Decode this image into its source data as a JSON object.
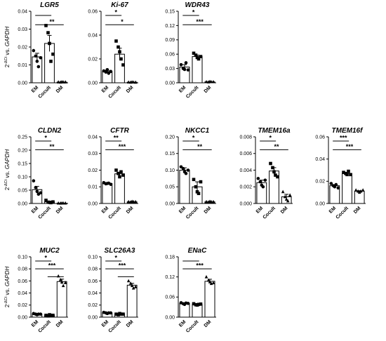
{
  "ylabel": {
    "pre": "2",
    "sup": "-ΔCt",
    "mid": " vs. ",
    "gene": "GAPDH"
  },
  "chart_data": [
    {
      "type": "bar",
      "title": "LGR5",
      "categories": [
        "EM",
        "Cocult",
        "DM"
      ],
      "values": [
        0.0145,
        0.022,
        0.0004
      ],
      "errors": [
        0.002,
        0.0045,
        0.0002
      ],
      "points": [
        [
          0.018,
          0.015,
          0.012,
          0.009,
          0.014
        ],
        [
          0.032,
          0.028,
          0.022,
          0.012,
          0.016
        ],
        [
          0.0004,
          0.0003,
          0.0005,
          0.0004,
          0.0004
        ]
      ],
      "yticks": [
        "0.00",
        "0.01",
        "0.02",
        "0.03",
        "0.04"
      ],
      "ylim": [
        0,
        0.04
      ],
      "comparisons": [
        {
          "from": 0,
          "to": 1,
          "label": ""
        },
        {
          "from": 0,
          "to": 2,
          "label": "**"
        }
      ]
    },
    {
      "type": "bar",
      "title": "Ki-67",
      "categories": [
        "EM",
        "Cocult",
        "DM"
      ],
      "values": [
        0.0095,
        0.024,
        0.0005
      ],
      "errors": [
        0.001,
        0.005,
        0.0002
      ],
      "points": [
        [
          0.01,
          0.009,
          0.011,
          0.008,
          0.0095
        ],
        [
          0.035,
          0.03,
          0.026,
          0.02,
          0.015
        ],
        [
          0.0005,
          0.0004,
          0.0006,
          0.0005,
          0.0004
        ]
      ],
      "yticks": [
        "0.00",
        "0.02",
        "0.04",
        "0.06"
      ],
      "ylim": [
        0,
        0.06
      ],
      "comparisons": [
        {
          "from": 0,
          "to": 1,
          "label": "*"
        },
        {
          "from": 0,
          "to": 2,
          "label": "*"
        }
      ]
    },
    {
      "type": "bar",
      "title": "WDR43",
      "categories": [
        "EM",
        "Cocult",
        "DM"
      ],
      "values": [
        0.033,
        0.055,
        0.002
      ],
      "errors": [
        0.005,
        0.003,
        0.0005
      ],
      "points": [
        [
          0.038,
          0.03,
          0.028,
          0.042,
          0.027
        ],
        [
          0.062,
          0.058,
          0.053,
          0.05,
          0.055
        ],
        [
          0.002,
          0.0015,
          0.0025,
          0.002,
          0.002
        ]
      ],
      "yticks": [
        "0.00",
        "0.03",
        "0.06",
        "0.09",
        "0.12",
        "0.15"
      ],
      "ylim": [
        0,
        0.15
      ],
      "comparisons": [
        {
          "from": 0,
          "to": 1,
          "label": "*"
        },
        {
          "from": 0,
          "to": 2,
          "label": "***"
        }
      ]
    },
    {
      "type": "bar",
      "title": "CLDN2",
      "categories": [
        "EM",
        "Cocult",
        "DM"
      ],
      "values": [
        0.052,
        0.006,
        0.001
      ],
      "errors": [
        0.012,
        0.003,
        0.0004
      ],
      "points": [
        [
          0.085,
          0.06,
          0.045,
          0.035,
          0.04
        ],
        [
          0.012,
          0.005,
          0.004,
          0.003,
          0.006
        ],
        [
          0.001,
          0.0008,
          0.0012,
          0.001,
          0.001
        ]
      ],
      "yticks": [
        "0.00",
        "0.05",
        "0.10",
        "0.15",
        "0.20",
        "0.25"
      ],
      "ylim": [
        0,
        0.25
      ],
      "comparisons": [
        {
          "from": 0,
          "to": 1,
          "label": "*"
        },
        {
          "from": 0,
          "to": 2,
          "label": "**"
        }
      ]
    },
    {
      "type": "bar",
      "title": "CFTR",
      "categories": [
        "EM",
        "Cocult",
        "DM"
      ],
      "values": [
        0.012,
        0.0178,
        0.001
      ],
      "errors": [
        0.0005,
        0.001,
        0.0003
      ],
      "points": [
        [
          0.0125,
          0.0118,
          0.012,
          0.0122,
          0.0115
        ],
        [
          0.02,
          0.018,
          0.016,
          0.019,
          0.017
        ],
        [
          0.001,
          0.0008,
          0.0012,
          0.001,
          0.001
        ]
      ],
      "yticks": [
        "0.00",
        "0.01",
        "0.02",
        "0.03",
        "0.04"
      ],
      "ylim": [
        0,
        0.04
      ],
      "comparisons": [
        {
          "from": 0,
          "to": 1,
          "label": "**"
        },
        {
          "from": 0,
          "to": 2,
          "label": "***"
        }
      ]
    },
    {
      "type": "bar",
      "title": "NKCC1",
      "categories": [
        "EM",
        "Cocult",
        "DM"
      ],
      "values": [
        0.1,
        0.05,
        0.005
      ],
      "errors": [
        0.007,
        0.015,
        0.001
      ],
      "points": [
        [
          0.11,
          0.105,
          0.095,
          0.09,
          0.1
        ],
        [
          0.072,
          0.05,
          0.035,
          0.03,
          0.065
        ],
        [
          0.005,
          0.004,
          0.006,
          0.005,
          0.005
        ]
      ],
      "yticks": [
        "0.00",
        "0.05",
        "0.10",
        "0.15",
        "0.20"
      ],
      "ylim": [
        0,
        0.2
      ],
      "comparisons": [
        {
          "from": 0,
          "to": 1,
          "label": "*"
        },
        {
          "from": 0,
          "to": 2,
          "label": "**"
        }
      ]
    },
    {
      "type": "bar",
      "title": "TMEM16a",
      "categories": [
        "EM",
        "Cocult",
        "DM"
      ],
      "values": [
        0.0025,
        0.0039,
        0.0008
      ],
      "errors": [
        0.0003,
        0.0004,
        0.0003
      ],
      "points": [
        [
          0.003,
          0.0026,
          0.0022,
          0.002,
          0.0028
        ],
        [
          0.0048,
          0.0043,
          0.0038,
          0.0034,
          0.0032
        ],
        [
          0.0014,
          0.0008,
          0.0005,
          0.0003,
          0.001
        ]
      ],
      "yticks": [
        "0.000",
        "0.002",
        "0.004",
        "0.006",
        "0.008"
      ],
      "ylim": [
        0,
        0.008
      ],
      "comparisons": [
        {
          "from": 0,
          "to": 1,
          "label": "*"
        },
        {
          "from": 0,
          "to": 2,
          "label": "**"
        }
      ]
    },
    {
      "type": "bar",
      "title": "TMEM16f",
      "categories": [
        "EM",
        "Cocult",
        "DM"
      ],
      "values": [
        0.016,
        0.027,
        0.011
      ],
      "errors": [
        0.001,
        0.001,
        0.0005
      ],
      "points": [
        [
          0.018,
          0.016,
          0.015,
          0.017,
          0.014
        ],
        [
          0.028,
          0.027,
          0.026,
          0.029,
          0.026
        ],
        [
          0.012,
          0.011,
          0.01,
          0.011,
          0.012
        ]
      ],
      "yticks": [
        "0.00",
        "0.02",
        "0.04",
        "0.06"
      ],
      "ylim": [
        0,
        0.06
      ],
      "comparisons": [
        {
          "from": 0,
          "to": 1,
          "label": "***"
        },
        {
          "from": 0,
          "to": 2,
          "label": "***"
        }
      ]
    },
    {
      "type": "bar",
      "title": "MUC2",
      "categories": [
        "EM",
        "Cocult",
        "DM"
      ],
      "values": [
        0.005,
        0.003,
        0.059
      ],
      "errors": [
        0.001,
        0.0005,
        0.004
      ],
      "points": [
        [
          0.006,
          0.005,
          0.004,
          0.005,
          0.005
        ],
        [
          0.003,
          0.002,
          0.004,
          0.003,
          0.003
        ],
        [
          0.068,
          0.062,
          0.058,
          0.052,
          0.057
        ]
      ],
      "yticks": [
        "0.00",
        "0.02",
        "0.04",
        "0.06",
        "0.08",
        "0.10"
      ],
      "ylim": [
        0,
        0.1
      ],
      "comparisons": [
        {
          "from": 0,
          "to": 1,
          "label": "*"
        },
        {
          "from": 0,
          "to": 2,
          "label": "***"
        },
        {
          "from": 1,
          "to": 2,
          "label": ""
        }
      ]
    },
    {
      "type": "bar",
      "title": "SLC26A3",
      "categories": [
        "EM",
        "Cocult",
        "DM"
      ],
      "values": [
        0.007,
        0.005,
        0.053
      ],
      "errors": [
        0.0005,
        0.0005,
        0.003
      ],
      "points": [
        [
          0.008,
          0.007,
          0.006,
          0.007,
          0.007
        ],
        [
          0.005,
          0.004,
          0.006,
          0.005,
          0.005
        ],
        [
          0.06,
          0.056,
          0.052,
          0.048,
          0.05
        ]
      ],
      "yticks": [
        "0.00",
        "0.02",
        "0.04",
        "0.06",
        "0.08",
        "0.10"
      ],
      "ylim": [
        0,
        0.1
      ],
      "comparisons": [
        {
          "from": 0,
          "to": 1,
          "label": "*"
        },
        {
          "from": 0,
          "to": 2,
          "label": "***"
        },
        {
          "from": 1,
          "to": 2,
          "label": ""
        }
      ]
    },
    {
      "type": "bar",
      "title": "ENaC",
      "categories": [
        "EM",
        "Cocult",
        "DM"
      ],
      "values": [
        0.041,
        0.038,
        0.107
      ],
      "errors": [
        0.002,
        0.002,
        0.006
      ],
      "points": [
        [
          0.043,
          0.04,
          0.038,
          0.042,
          0.041
        ],
        [
          0.04,
          0.037,
          0.036,
          0.038,
          0.039
        ],
        [
          0.12,
          0.11,
          0.105,
          0.1,
          0.102
        ]
      ],
      "yticks": [
        "0.00",
        "0.06",
        "0.12",
        "0.18"
      ],
      "ylim": [
        0,
        0.18
      ],
      "comparisons": [
        {
          "from": 0,
          "to": 1,
          "label": ""
        },
        {
          "from": 0,
          "to": 2,
          "label": "***"
        }
      ]
    }
  ]
}
